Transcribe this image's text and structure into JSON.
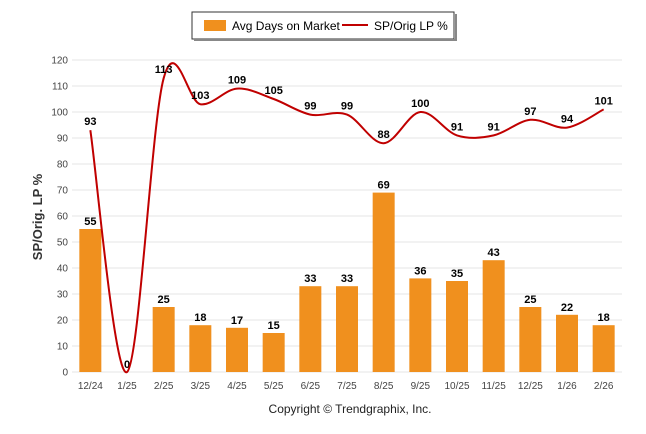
{
  "chart_data": {
    "type": "bar",
    "categories": [
      "12/24",
      "1/25",
      "2/25",
      "3/25",
      "4/25",
      "5/25",
      "6/25",
      "7/25",
      "8/25",
      "9/25",
      "10/25",
      "11/25",
      "12/25",
      "1/26",
      "2/26"
    ],
    "series": [
      {
        "name": "Avg Days on Market",
        "type": "bar",
        "color": "#f0901e",
        "values": [
          55,
          0,
          25,
          18,
          17,
          15,
          33,
          33,
          69,
          36,
          35,
          43,
          25,
          22,
          18
        ]
      },
      {
        "name": "SP/Orig LP %",
        "type": "line",
        "color": "#c00000",
        "values": [
          93,
          0,
          113,
          103,
          109,
          105,
          99,
          99,
          88,
          100,
          91,
          91,
          97,
          94,
          101
        ]
      }
    ],
    "ylabel": "SP/Orig. LP %",
    "ylim": [
      0,
      120
    ],
    "yticks": [
      0,
      10,
      20,
      30,
      40,
      50,
      60,
      70,
      80,
      90,
      100,
      110,
      120
    ],
    "grid": true,
    "legend_position": "top-center",
    "footer": "Copyright © Trendgraphix, Inc."
  }
}
